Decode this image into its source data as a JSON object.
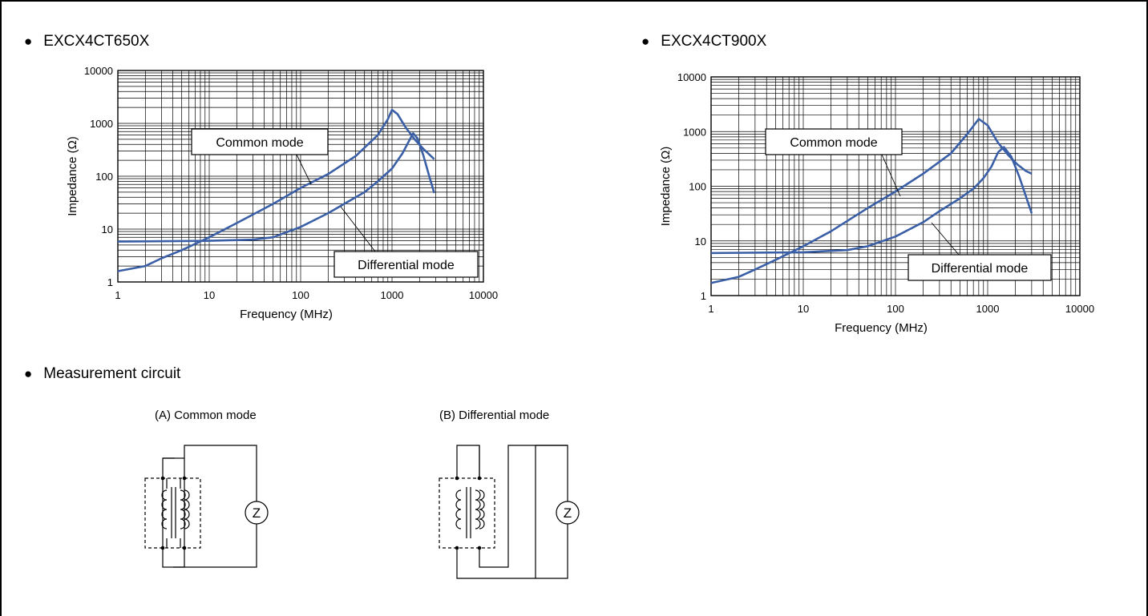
{
  "headings": {
    "chart1": "EXCX4CT650X",
    "chart2": "EXCX4CT900X",
    "circuit": "Measurement circuit",
    "bullet": "●"
  },
  "colors": {
    "series": "#3a5fa6",
    "grid": "#000000"
  },
  "circuits": {
    "a_title": "(A) Common mode",
    "b_title": "(B) Differential mode",
    "z_label": "Z"
  },
  "chart_data": [
    {
      "type": "line",
      "title": "EXCX4CT650X",
      "xlabel": "Frequency  (MHz)",
      "ylabel": "Impedance (Ω)",
      "xscale": "log",
      "yscale": "log",
      "xlim": [
        1,
        10000
      ],
      "ylim": [
        1,
        10000
      ],
      "xticks": [
        "1",
        "10",
        "100",
        "1000",
        "10000"
      ],
      "yticks": [
        "1",
        "10",
        "100",
        "1000",
        "10000"
      ],
      "grid": true,
      "annotations": [
        "Common mode",
        "Differential mode"
      ],
      "series": [
        {
          "name": "Common mode",
          "x": [
            1,
            2,
            3,
            5,
            10,
            20,
            50,
            100,
            200,
            400,
            700,
            900,
            1000,
            1150,
            1400,
            1800,
            2200,
            2900
          ],
          "y": [
            1.6,
            2,
            2.8,
            4,
            7,
            13,
            30,
            60,
            110,
            240,
            600,
            1200,
            1800,
            1500,
            850,
            480,
            330,
            210
          ]
        },
        {
          "name": "Differential mode",
          "x": [
            1,
            10,
            30,
            50,
            100,
            200,
            300,
            500,
            700,
            1000,
            1300,
            1700,
            1900,
            2200,
            2600,
            2900
          ],
          "y": [
            5.8,
            6,
            6.3,
            7,
            11,
            20,
            30,
            50,
            80,
            140,
            270,
            650,
            520,
            250,
            90,
            48
          ]
        }
      ]
    },
    {
      "type": "line",
      "title": "EXCX4CT900X",
      "xlabel": "Frequency  (MHz)",
      "ylabel": "Impedance (Ω)",
      "xscale": "log",
      "yscale": "log",
      "xlim": [
        1,
        10000
      ],
      "ylim": [
        1,
        10000
      ],
      "xticks": [
        "1",
        "10",
        "100",
        "1000",
        "10000"
      ],
      "yticks": [
        "1",
        "10",
        "100",
        "1000",
        "10000"
      ],
      "grid": true,
      "annotations": [
        "Common mode",
        "Differential mode"
      ],
      "series": [
        {
          "name": "Common mode",
          "x": [
            1,
            2,
            3,
            5,
            10,
            20,
            50,
            100,
            200,
            400,
            600,
            800,
            1000,
            1300,
            1700,
            2100,
            2600,
            3000
          ],
          "y": [
            1.7,
            2.2,
            3,
            4.5,
            8,
            15,
            40,
            80,
            170,
            400,
            900,
            1700,
            1300,
            620,
            360,
            250,
            190,
            170
          ]
        },
        {
          "name": "Differential mode",
          "x": [
            1,
            10,
            30,
            50,
            100,
            200,
            300,
            500,
            700,
            900,
            1100,
            1300,
            1500,
            1800,
            2200,
            3000
          ],
          "y": [
            6,
            6.2,
            6.8,
            8,
            12,
            22,
            35,
            60,
            90,
            140,
            230,
            420,
            520,
            350,
            150,
            32
          ]
        }
      ]
    }
  ]
}
